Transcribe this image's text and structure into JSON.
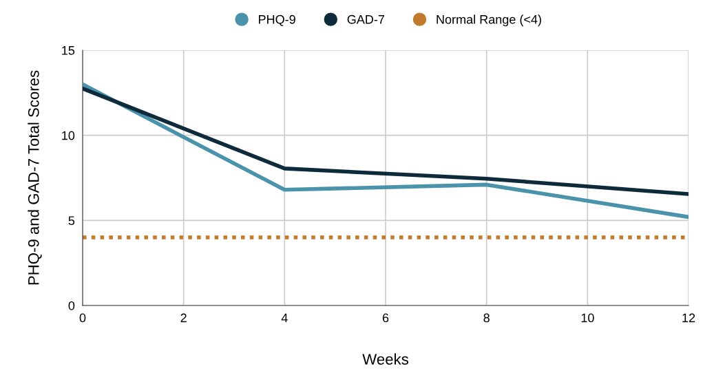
{
  "chart_data": {
    "type": "line",
    "xlabel": "Weeks",
    "ylabel": "PHQ-9 and GAD-7 Total Scores",
    "x": [
      0,
      4,
      8,
      12
    ],
    "series": [
      {
        "name": "PHQ-9",
        "color": "#4a93ab",
        "values": [
          13.0,
          6.8,
          7.1,
          5.2
        ]
      },
      {
        "name": "GAD-7",
        "color": "#0e2b3b",
        "values": [
          12.75,
          8.05,
          7.45,
          6.55
        ]
      },
      {
        "name": "Normal Range (<4)",
        "color": "#c27b2e",
        "values": [
          4,
          4,
          4,
          4
        ],
        "line_style": "dotted"
      }
    ],
    "xlim": [
      0,
      12
    ],
    "xticks": [
      0,
      2,
      4,
      6,
      8,
      10,
      12
    ],
    "ylim": [
      0,
      15
    ],
    "yticks": [
      0,
      5,
      10,
      15
    ],
    "grid": true,
    "legend": "top",
    "line_style": "solid"
  }
}
